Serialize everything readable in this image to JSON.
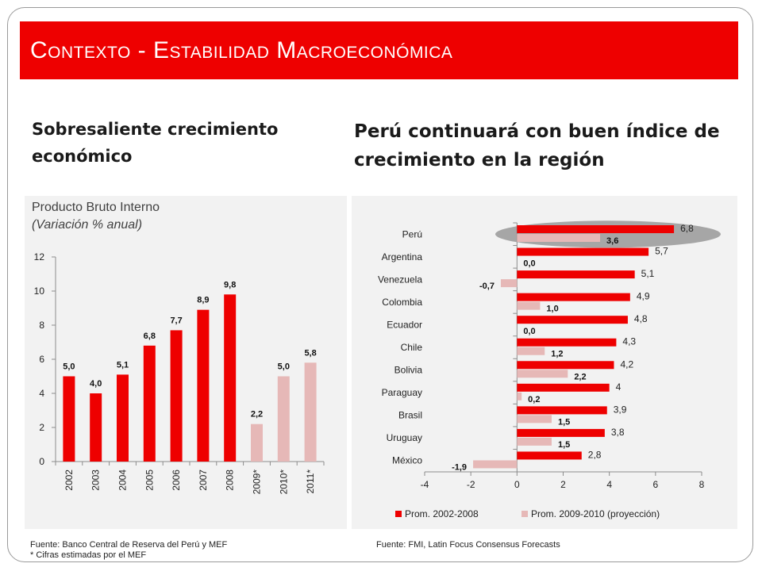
{
  "title": "Contexto - Estabilidad Macroeconómica",
  "heading_left": "Sobresaliente crecimiento económico",
  "heading_right": "Perú continuará con buen índice de crecimiento en la región",
  "colors": {
    "banner": "#ee0000",
    "red": "#ee0000",
    "pink": "#e6b8b7",
    "ellipse": "#a6a6a6"
  },
  "chart_data": [
    {
      "type": "bar",
      "title": "Producto Bruto Interno",
      "subtitle": "(Variación % anual)",
      "categories": [
        "2002",
        "2003",
        "2004",
        "2005",
        "2006",
        "2007",
        "2008",
        "2009*",
        "2010*",
        "2011*"
      ],
      "values": [
        5.0,
        4.0,
        5.1,
        6.8,
        7.7,
        8.9,
        9.8,
        2.2,
        5.0,
        5.8
      ],
      "labels": [
        "5,0",
        "4,0",
        "5,1",
        "6,8",
        "7,7",
        "8,9",
        "9,8",
        "2,2",
        "5,0",
        "5,8"
      ],
      "estimated": [
        false,
        false,
        false,
        false,
        false,
        false,
        false,
        true,
        true,
        true
      ],
      "ylim": [
        0,
        12
      ],
      "yticks": [
        "0",
        "2",
        "4",
        "6",
        "8",
        "10",
        "12"
      ]
    },
    {
      "type": "bar",
      "orientation": "horizontal",
      "categories": [
        "Perú",
        "Argentina",
        "Venezuela",
        "Colombia",
        "Ecuador",
        "Chile",
        "Bolivia",
        "Paraguay",
        "Brasil",
        "Uruguay",
        "México"
      ],
      "series": [
        {
          "name": "Prom. 2002-2008",
          "values": [
            6.8,
            5.7,
            5.1,
            4.9,
            4.8,
            4.3,
            4.2,
            4.0,
            3.9,
            3.8,
            2.8
          ],
          "labels": [
            "6,8",
            "5,7",
            "5,1",
            "4,9",
            "4,8",
            "4,3",
            "4,2",
            "4",
            "3,9",
            "3,8",
            "2,8"
          ]
        },
        {
          "name": "Prom. 2009-2010 (proyección)",
          "values": [
            3.6,
            0.0,
            -0.7,
            1.0,
            0.0,
            1.2,
            2.2,
            0.2,
            1.5,
            1.5,
            -1.9
          ],
          "labels": [
            "3,6",
            "0,0",
            "-0,7",
            "1,0",
            "0,0",
            "1,2",
            "2,2",
            "0,2",
            "1,5",
            "1,5",
            "-1,9"
          ]
        }
      ],
      "xlim": [
        -4,
        8
      ],
      "xticks": [
        "-4",
        "-2",
        "0",
        "2",
        "4",
        "6",
        "8"
      ],
      "highlight": "Perú",
      "legend": "bottom"
    }
  ],
  "footer": {
    "left_line1": "Fuente: Banco Central de Reserva del Perú y MEF",
    "left_line2": "* Cifras estimadas por el MEF",
    "right": "Fuente: FMI, Latin Focus Consensus Forecasts"
  }
}
